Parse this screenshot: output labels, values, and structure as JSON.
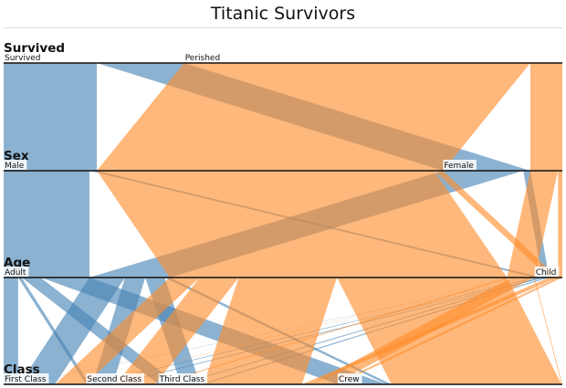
{
  "title": "Titanic Survivors",
  "colors": {
    "survived": "#4682b4",
    "perished": "#ff8c2a"
  },
  "chart_data": {
    "type": "parallel-sets",
    "title": "Titanic Survivors",
    "dimensions": [
      {
        "name": "Survived",
        "categories": [
          "Survived",
          "Perished"
        ]
      },
      {
        "name": "Sex",
        "categories": [
          "Male",
          "Female"
        ]
      },
      {
        "name": "Age",
        "categories": [
          "Adult",
          "Child"
        ]
      },
      {
        "name": "Class",
        "categories": [
          "First Class",
          "Second Class",
          "Third Class",
          "Crew"
        ]
      }
    ],
    "records": [
      {
        "survived": "Survived",
        "sex": "Male",
        "age": "Adult",
        "class": "First Class",
        "count": 57
      },
      {
        "survived": "Survived",
        "sex": "Male",
        "age": "Adult",
        "class": "Second Class",
        "count": 14
      },
      {
        "survived": "Survived",
        "sex": "Male",
        "age": "Adult",
        "class": "Third Class",
        "count": 75
      },
      {
        "survived": "Survived",
        "sex": "Male",
        "age": "Adult",
        "class": "Crew",
        "count": 192
      },
      {
        "survived": "Survived",
        "sex": "Male",
        "age": "Child",
        "class": "First Class",
        "count": 5
      },
      {
        "survived": "Survived",
        "sex": "Male",
        "age": "Child",
        "class": "Second Class",
        "count": 11
      },
      {
        "survived": "Survived",
        "sex": "Male",
        "age": "Child",
        "class": "Third Class",
        "count": 13
      },
      {
        "survived": "Survived",
        "sex": "Female",
        "age": "Adult",
        "class": "First Class",
        "count": 140
      },
      {
        "survived": "Survived",
        "sex": "Female",
        "age": "Adult",
        "class": "Second Class",
        "count": 80
      },
      {
        "survived": "Survived",
        "sex": "Female",
        "age": "Adult",
        "class": "Third Class",
        "count": 76
      },
      {
        "survived": "Survived",
        "sex": "Female",
        "age": "Adult",
        "class": "Crew",
        "count": 20
      },
      {
        "survived": "Survived",
        "sex": "Female",
        "age": "Child",
        "class": "First Class",
        "count": 1
      },
      {
        "survived": "Survived",
        "sex": "Female",
        "age": "Child",
        "class": "Second Class",
        "count": 13
      },
      {
        "survived": "Survived",
        "sex": "Female",
        "age": "Child",
        "class": "Third Class",
        "count": 14
      },
      {
        "survived": "Perished",
        "sex": "Male",
        "age": "Adult",
        "class": "First Class",
        "count": 118
      },
      {
        "survived": "Perished",
        "sex": "Male",
        "age": "Adult",
        "class": "Second Class",
        "count": 154
      },
      {
        "survived": "Perished",
        "sex": "Male",
        "age": "Adult",
        "class": "Third Class",
        "count": 387
      },
      {
        "survived": "Perished",
        "sex": "Male",
        "age": "Adult",
        "class": "Crew",
        "count": 670
      },
      {
        "survived": "Perished",
        "sex": "Male",
        "age": "Child",
        "class": "Third Class",
        "count": 35
      },
      {
        "survived": "Perished",
        "sex": "Female",
        "age": "Adult",
        "class": "First Class",
        "count": 4
      },
      {
        "survived": "Perished",
        "sex": "Female",
        "age": "Adult",
        "class": "Second Class",
        "count": 13
      },
      {
        "survived": "Perished",
        "sex": "Female",
        "age": "Adult",
        "class": "Third Class",
        "count": 89
      },
      {
        "survived": "Perished",
        "sex": "Female",
        "age": "Adult",
        "class": "Crew",
        "count": 3
      },
      {
        "survived": "Perished",
        "sex": "Female",
        "age": "Child",
        "class": "Third Class",
        "count": 17
      }
    ]
  }
}
